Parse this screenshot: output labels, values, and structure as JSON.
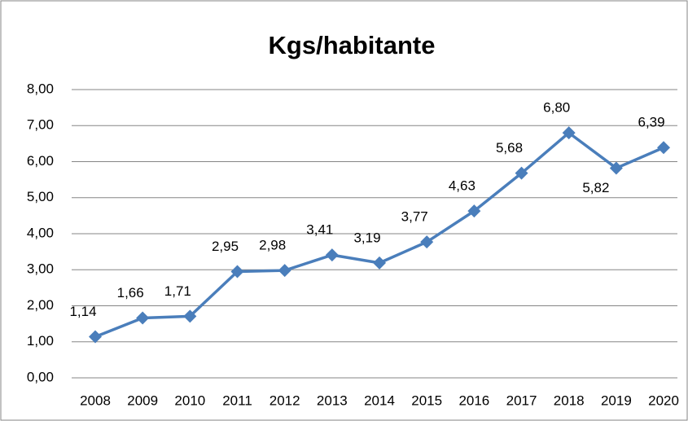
{
  "chart_data": {
    "type": "line",
    "title": "Kgs/habitante",
    "categories": [
      "2008",
      "2009",
      "2010",
      "2011",
      "2012",
      "2013",
      "2014",
      "2015",
      "2016",
      "2017",
      "2018",
      "2019",
      "2020"
    ],
    "series": [
      {
        "name": "Kgs/habitante",
        "color": "#4a7ebb",
        "values": [
          1.14,
          1.66,
          1.71,
          2.95,
          2.98,
          3.41,
          3.19,
          3.77,
          4.63,
          5.68,
          6.8,
          5.82,
          6.39
        ],
        "value_labels": [
          "1,14",
          "1,66",
          "1,71",
          "2,95",
          "2,98",
          "3,41",
          "3,19",
          "3,77",
          "4,63",
          "5,68",
          "6,80",
          "5,82",
          "6,39"
        ]
      }
    ],
    "ylim": [
      0,
      8
    ],
    "yticks": [
      {
        "value": 0,
        "label": "0,00"
      },
      {
        "value": 1,
        "label": "1,00"
      },
      {
        "value": 2,
        "label": "2,00"
      },
      {
        "value": 3,
        "label": "3,00"
      },
      {
        "value": 4,
        "label": "4,00"
      },
      {
        "value": 5,
        "label": "5,00"
      },
      {
        "value": 6,
        "label": "6,00"
      },
      {
        "value": 7,
        "label": "7,00"
      },
      {
        "value": 8,
        "label": "8,00"
      }
    ],
    "grid": true
  }
}
